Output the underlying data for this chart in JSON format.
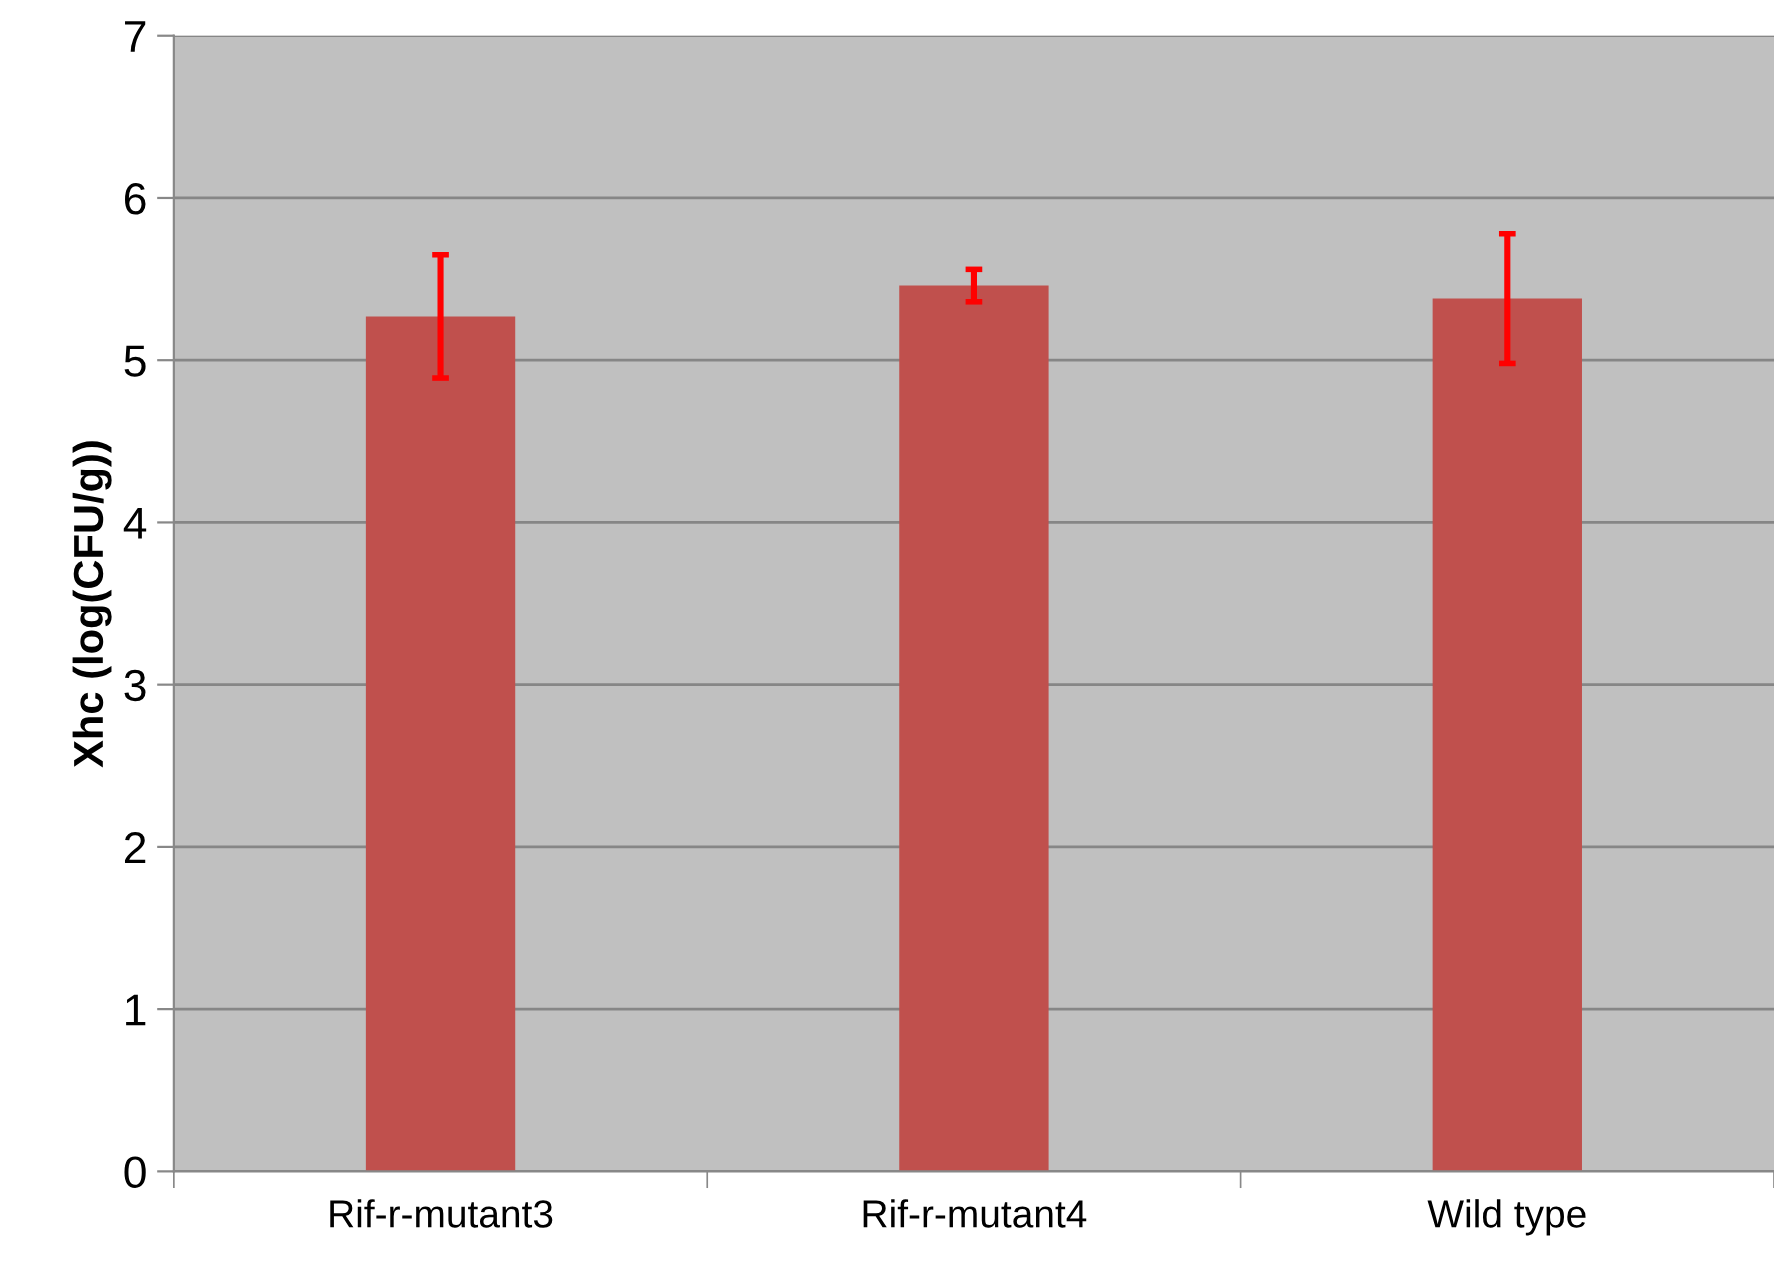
{
  "chart_data": {
    "type": "bar",
    "ylabel": "Xhc (log(CFU/g))",
    "categories": [
      "Rif-r-mutant3",
      "Rif-r-mutant4",
      "Wild type"
    ],
    "series": [
      {
        "color": "#c0504d",
        "values": [
          5.27,
          5.46,
          5.38
        ],
        "errors": [
          0.38,
          0.1,
          0.4
        ]
      }
    ],
    "ylim": [
      0,
      7
    ],
    "yticks": [
      0,
      1,
      2,
      3,
      4,
      5,
      6,
      7
    ],
    "grid": "y"
  }
}
